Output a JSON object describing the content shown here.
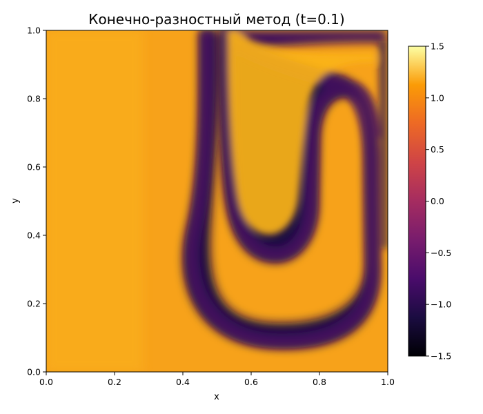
{
  "chart_data": {
    "type": "heatmap",
    "title": "Конечно-разностный метод (t=0.1)",
    "xlabel": "x",
    "ylabel": "y",
    "xlim": [
      0.0,
      1.0
    ],
    "ylim": [
      0.0,
      1.0
    ],
    "x_ticks": [
      "0.0",
      "0.2",
      "0.4",
      "0.6",
      "0.8",
      "1.0"
    ],
    "y_ticks": [
      "0.0",
      "0.2",
      "0.4",
      "0.6",
      "0.8",
      "1.0"
    ],
    "colormap": "inferno",
    "color_range": [
      -1.5,
      1.5
    ],
    "colorbar_ticks": [
      "1.5",
      "1.0",
      "0.5",
      "0.0",
      "−0.5",
      "−1.0",
      "−1.5"
    ],
    "grid": false,
    "field_description_values": {
      "background_level": 1.0,
      "trough_level": -1.1,
      "inner_peak_level": 0.9
    }
  }
}
